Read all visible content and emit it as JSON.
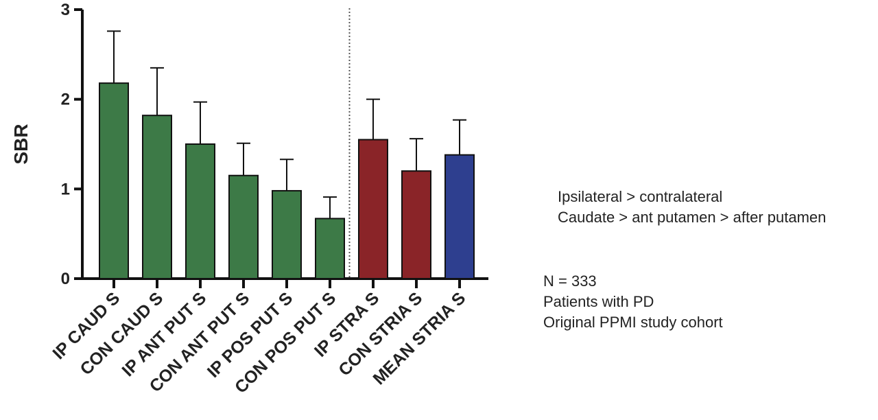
{
  "chart_data": {
    "type": "bar",
    "ylabel": "SBR",
    "xlabel": "",
    "ylim": [
      0,
      3
    ],
    "yticks": [
      "0",
      "1",
      "2",
      "3"
    ],
    "categories": [
      "IP CAUD S",
      "CON CAUD S",
      "IP ANT PUT S",
      "CON ANT PUT S",
      "IP POS PUT S",
      "CON POS PUT S",
      "IP STRA S",
      "CON STRIA S",
      "MEAN STRIA S"
    ],
    "values": [
      2.18,
      1.82,
      1.5,
      1.15,
      0.98,
      0.67,
      1.55,
      1.2,
      1.38
    ],
    "error_upper": [
      0.58,
      0.53,
      0.47,
      0.36,
      0.35,
      0.24,
      0.45,
      0.36,
      0.39
    ],
    "bar_colors": [
      "#3d7a47",
      "#3d7a47",
      "#3d7a47",
      "#3d7a47",
      "#3d7a47",
      "#3d7a47",
      "#8a2428",
      "#8a2428",
      "#2e3f8f"
    ],
    "divider_after_index": 5,
    "grid": false
  },
  "notes": {
    "comparison_lines": [
      "Ipsilateral > contralateral",
      "Caudate > ant putamen > after putamen"
    ],
    "cohort_lines": [
      "N = 333",
      "Patients with PD",
      "Original PPMI study cohort"
    ]
  }
}
